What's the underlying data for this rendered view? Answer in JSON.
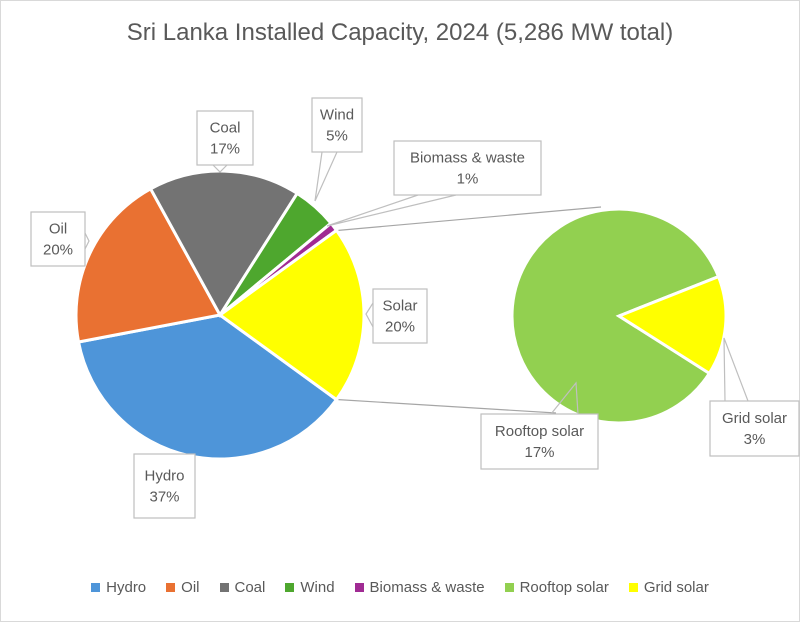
{
  "chart_data": {
    "type": "pie",
    "subtype": "pie-of-pie",
    "title": "Sri Lanka Installed Capacity, 2024 (5,286 MW total)",
    "unit": "percent",
    "main_pie": [
      {
        "name": "Hydro",
        "value": 37,
        "label": "Hydro",
        "pct_label": "37%",
        "color": "#4e95d9"
      },
      {
        "name": "Oil",
        "value": 20,
        "label": "Oil",
        "pct_label": "20%",
        "color": "#e97132"
      },
      {
        "name": "Coal",
        "value": 17,
        "label": "Coal",
        "pct_label": "17%",
        "color": "#737373"
      },
      {
        "name": "Wind",
        "value": 5,
        "label": "Wind",
        "pct_label": "5%",
        "color": "#4ea72e"
      },
      {
        "name": "Biomass & waste",
        "value": 1,
        "label": "Biomass & waste",
        "pct_label": "1%",
        "color": "#a02b93"
      },
      {
        "name": "Solar",
        "value": 20,
        "label": "Solar",
        "pct_label": "20%",
        "color": "#ffff00"
      }
    ],
    "secondary_pie": [
      {
        "name": "Rooftop solar",
        "value": 17,
        "label": "Rooftop solar",
        "pct_label": "17%",
        "color": "#92d050"
      },
      {
        "name": "Grid solar",
        "value": 3,
        "label": "Grid solar",
        "pct_label": "3%",
        "color": "#ffff00"
      }
    ],
    "legend": {
      "position": "bottom",
      "entries": [
        {
          "name": "Hydro",
          "color": "#4e95d9"
        },
        {
          "name": "Oil",
          "color": "#e97132"
        },
        {
          "name": "Coal",
          "color": "#737373"
        },
        {
          "name": "Wind",
          "color": "#4ea72e"
        },
        {
          "name": "Biomass & waste",
          "color": "#a02b93"
        },
        {
          "name": "Rooftop solar",
          "color": "#92d050"
        },
        {
          "name": "Grid solar",
          "color": "#ffff00"
        }
      ]
    }
  }
}
